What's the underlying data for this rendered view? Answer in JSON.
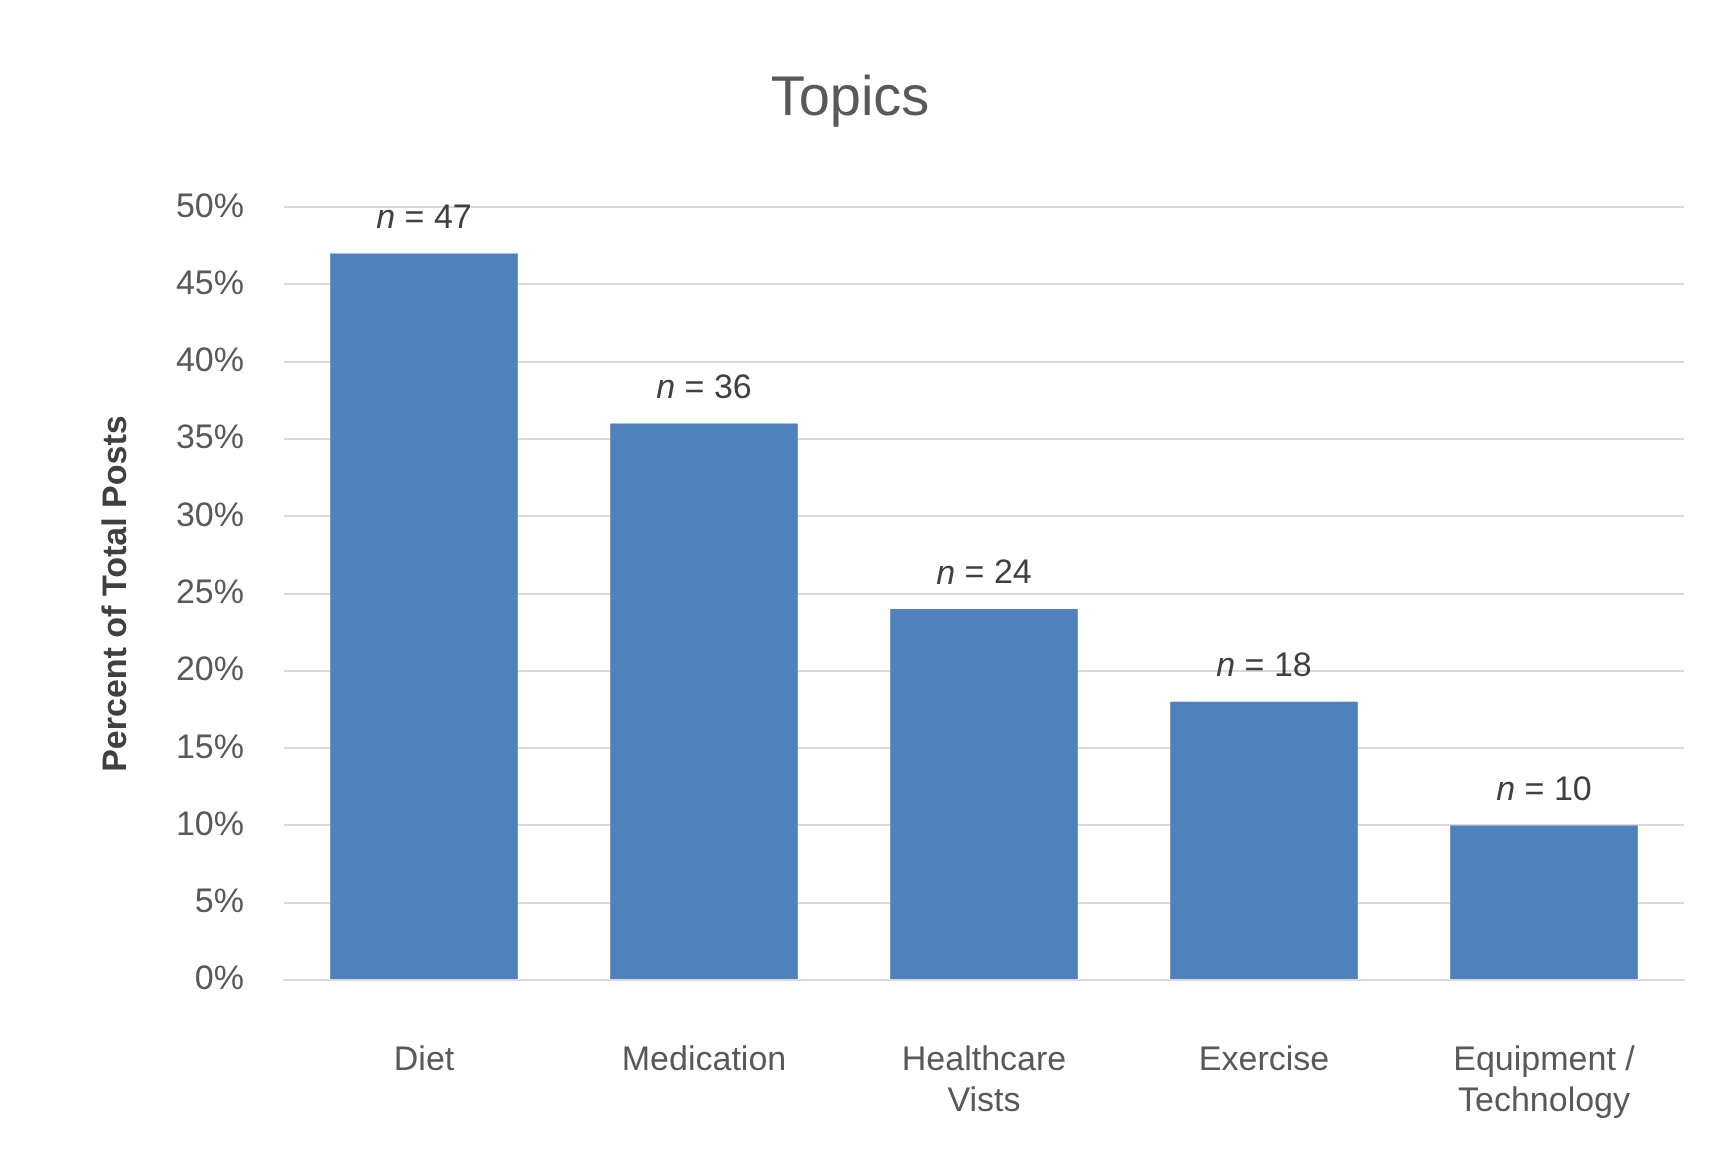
{
  "chart_data": {
    "type": "bar",
    "title": "Topics",
    "ylabel": "Percent of Total Posts",
    "categories": [
      "Diet",
      "Medication",
      "Healthcare Vists",
      "Exercise",
      "Equipment / Technology"
    ],
    "values": [
      47,
      36,
      24,
      18,
      10
    ],
    "value_labels": [
      "n = 47",
      "n = 36",
      "n = 24",
      "n = 18",
      "n = 10"
    ],
    "color": "#4f81bd",
    "ylim": [
      0,
      50
    ],
    "yticks": [
      {
        "value": 0,
        "label": "0%"
      },
      {
        "value": 5,
        "label": "5%"
      },
      {
        "value": 10,
        "label": "10%"
      },
      {
        "value": 15,
        "label": "15%"
      },
      {
        "value": 20,
        "label": "20%"
      },
      {
        "value": 25,
        "label": "25%"
      },
      {
        "value": 30,
        "label": "30%"
      },
      {
        "value": 35,
        "label": "35%"
      },
      {
        "value": 40,
        "label": "40%"
      },
      {
        "value": 45,
        "label": "45%"
      },
      {
        "value": 50,
        "label": "50%"
      }
    ],
    "grid": "y"
  }
}
